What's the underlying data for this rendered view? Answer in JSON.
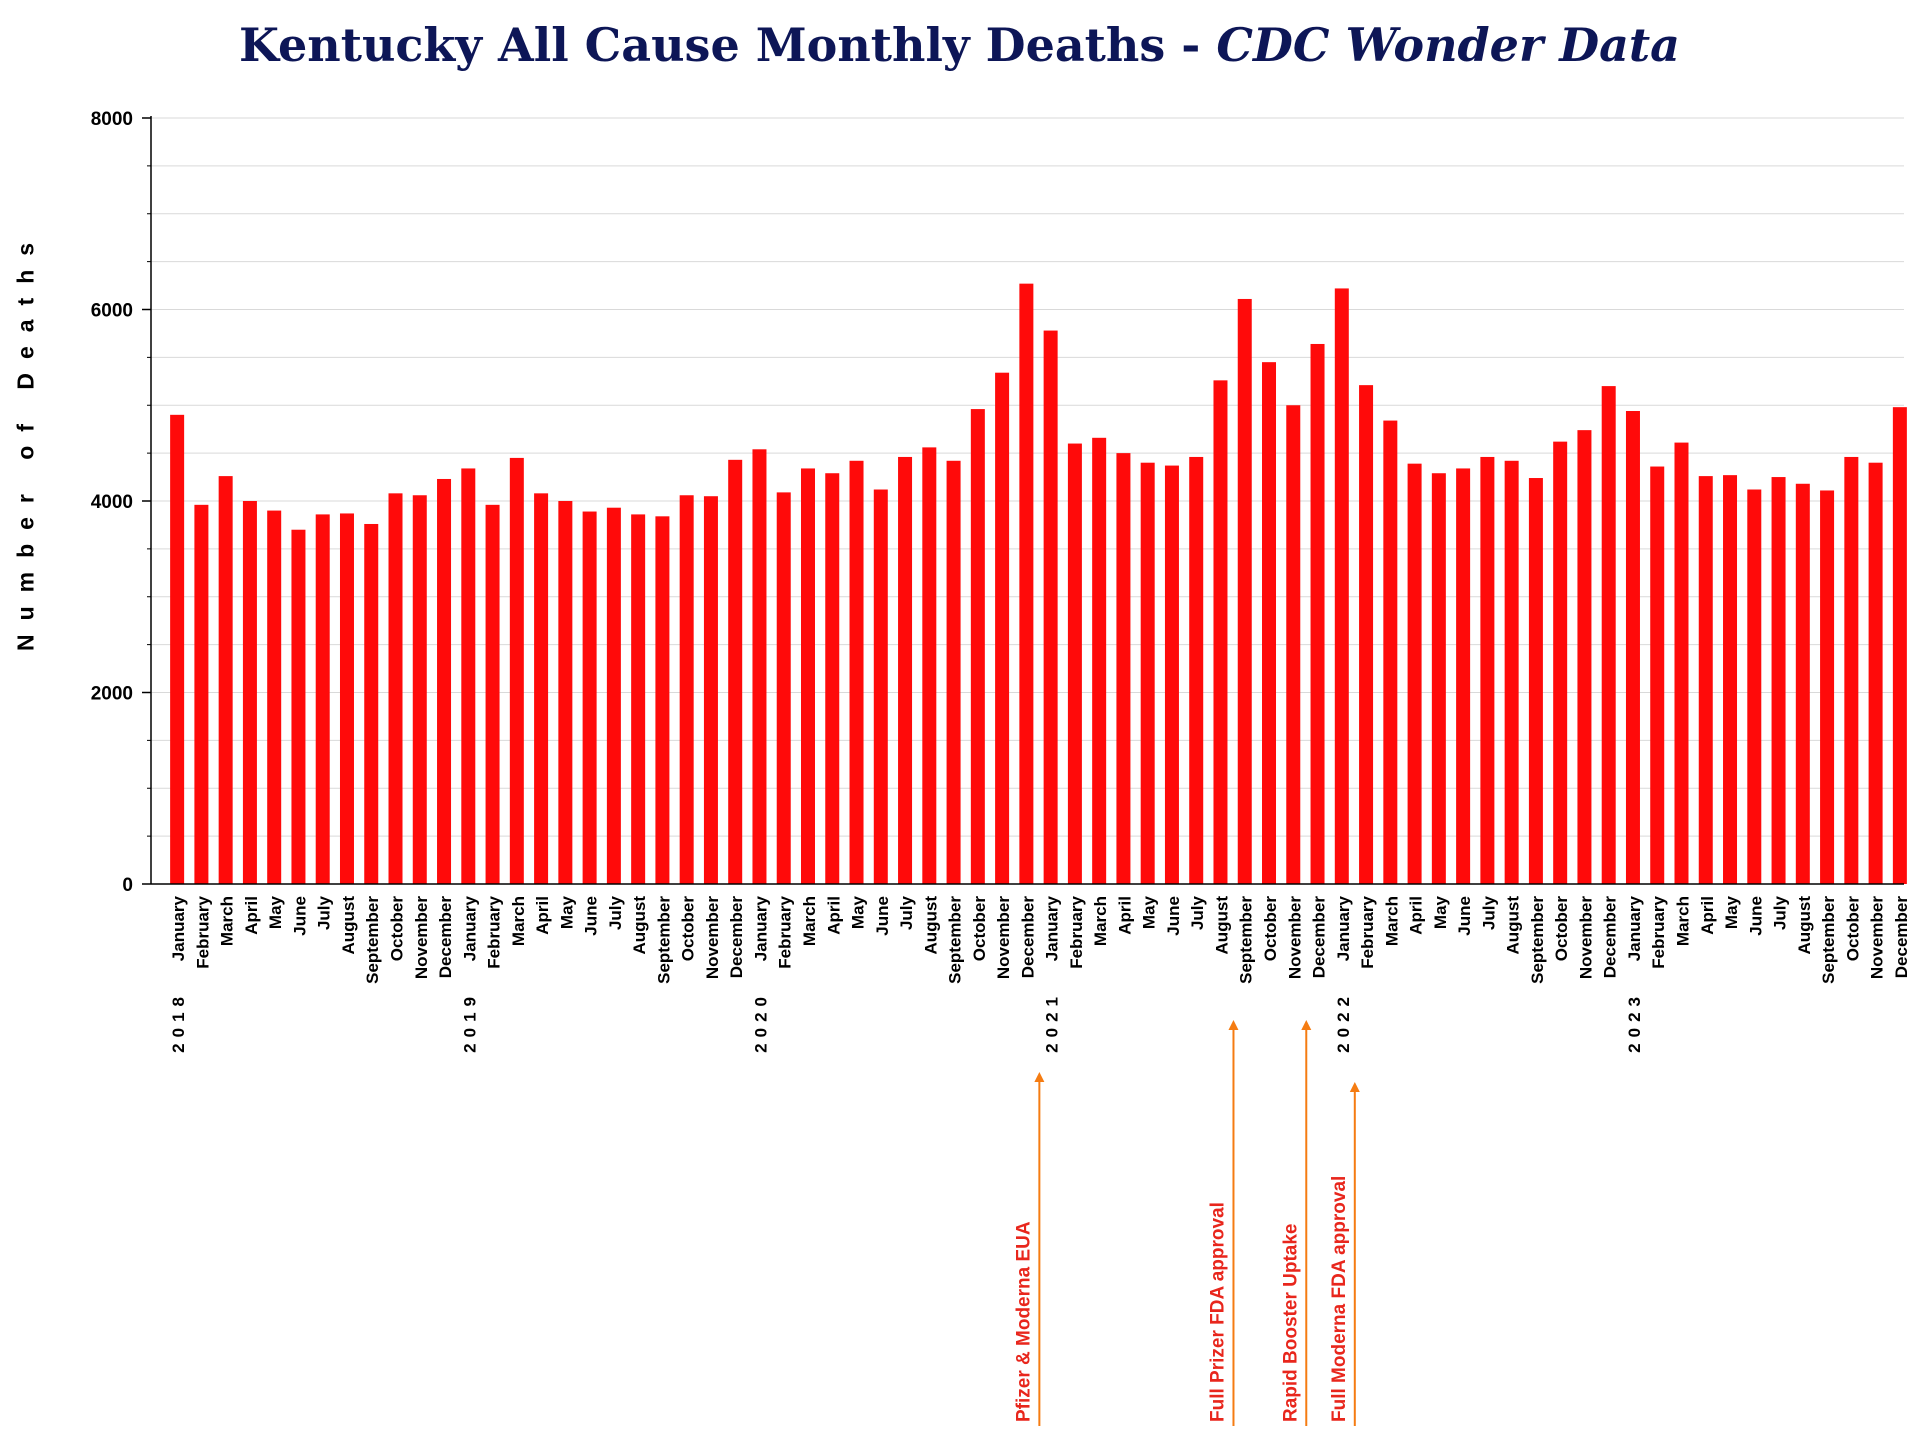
{
  "chart_data": {
    "type": "bar",
    "title": "Kentucky All Cause Monthly Deaths -",
    "subtitle": "CDC Wonder Data",
    "xlabel": "",
    "ylabel": "Number of Deaths",
    "ylim": [
      0,
      8000
    ],
    "yticks": [
      "0",
      "2000",
      "4000",
      "6000",
      "8000"
    ],
    "grid": true,
    "bar_color": "#ff0a0a",
    "annotation_color": "#f57c12",
    "annotation_text_color": "#e8261c",
    "categories": [
      "January",
      "February",
      "March",
      "April",
      "May",
      "June",
      "July",
      "August",
      "September",
      "October",
      "November",
      "December",
      "January",
      "February",
      "March",
      "April",
      "May",
      "June",
      "July",
      "August",
      "September",
      "October",
      "November",
      "December",
      "January",
      "February",
      "March",
      "April",
      "May",
      "June",
      "July",
      "August",
      "September",
      "October",
      "November",
      "December",
      "January",
      "February",
      "March",
      "April",
      "May",
      "June",
      "July",
      "August",
      "September",
      "October",
      "November",
      "December",
      "January",
      "February",
      "March",
      "April",
      "May",
      "June",
      "July",
      "August",
      "September",
      "October",
      "November",
      "December",
      "January",
      "February",
      "March",
      "April",
      "May",
      "June",
      "July",
      "August",
      "September",
      "October",
      "November",
      "December"
    ],
    "years": [
      {
        "label": "2018",
        "index": 0
      },
      {
        "label": "2019",
        "index": 12
      },
      {
        "label": "2020",
        "index": 24
      },
      {
        "label": "2021",
        "index": 36
      },
      {
        "label": "2022",
        "index": 48
      },
      {
        "label": "2023",
        "index": 60
      }
    ],
    "values": [
      4900,
      3960,
      4260,
      4000,
      3900,
      3700,
      3860,
      3870,
      3760,
      4080,
      4060,
      4230,
      4340,
      3960,
      4450,
      4080,
      4000,
      3890,
      3930,
      3860,
      3840,
      4060,
      4050,
      4430,
      4540,
      4090,
      4340,
      4290,
      4420,
      4120,
      4460,
      4560,
      4420,
      4960,
      5340,
      6270,
      5780,
      4600,
      4660,
      4500,
      4400,
      4370,
      4460,
      5260,
      6110,
      5450,
      5000,
      5640,
      6220,
      5210,
      4840,
      4390,
      4290,
      4340,
      4460,
      4420,
      4240,
      4620,
      4740,
      5200,
      4940,
      4360,
      4610,
      4260,
      4270,
      4120,
      4250,
      4180,
      4110,
      4460,
      4400,
      4980
    ],
    "annotations": [
      {
        "label": "Pfizer & Moderna EUA",
        "index": 35
      },
      {
        "label": "Full Prizer FDA approval",
        "index": 43
      },
      {
        "label": "Rapid Booster Uptake",
        "index": 46
      },
      {
        "label": "Full Moderna FDA approval",
        "index": 48
      }
    ]
  }
}
